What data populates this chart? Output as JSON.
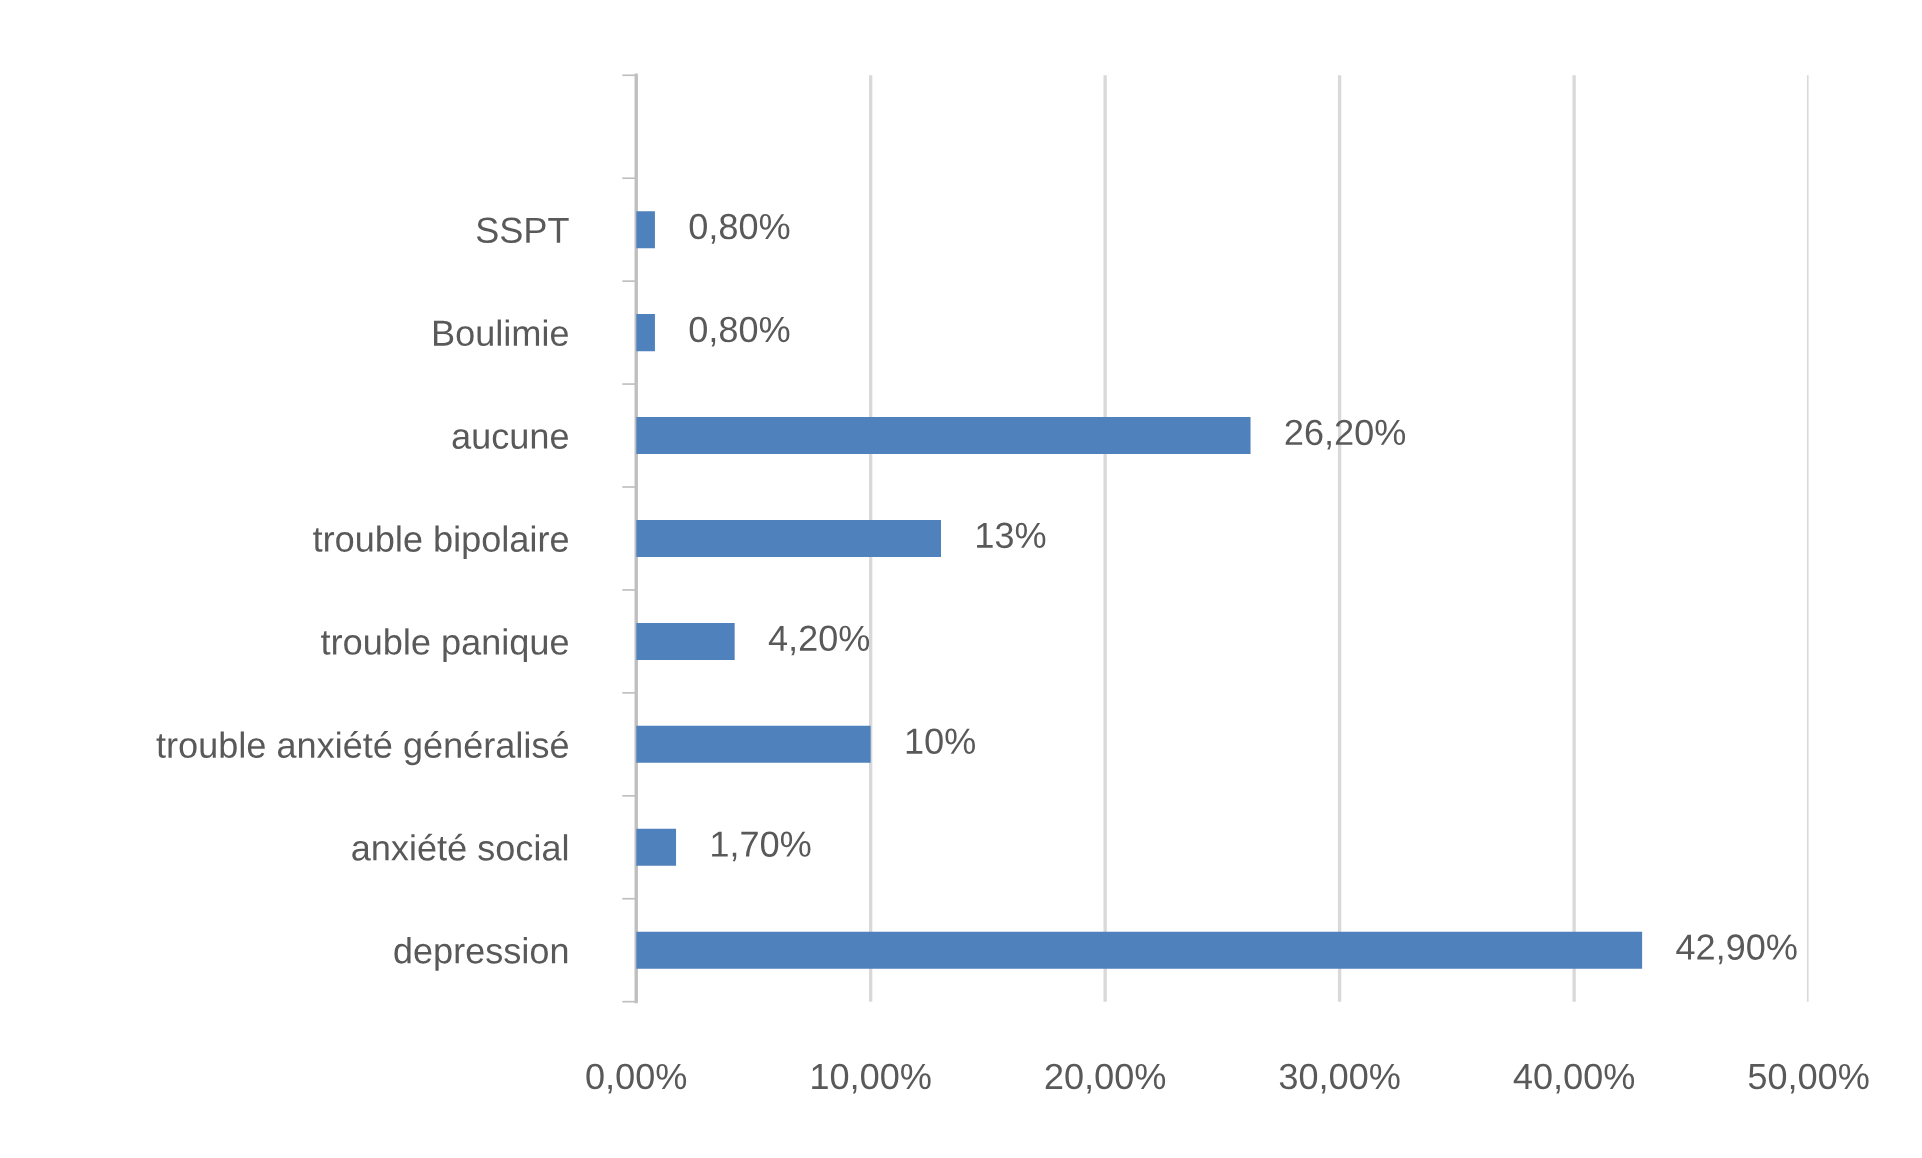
{
  "chart_data": {
    "type": "bar",
    "orientation": "horizontal",
    "categories": [
      null,
      "SSPT",
      "Boulimie",
      "aucune",
      "trouble bipolaire",
      "trouble panique",
      "trouble anxiété généralisé",
      "anxiété social",
      "depression"
    ],
    "values": [
      null,
      0.8,
      0.8,
      26.2,
      13,
      4.2,
      10,
      1.7,
      42.9
    ],
    "value_labels": [
      null,
      "0,80%",
      "0,80%",
      "26,20%",
      "13%",
      "4,20%",
      "10%",
      "1,70%",
      "42,90%"
    ],
    "color": "#4f81bd",
    "xlim": [
      0,
      50
    ],
    "xticks": [
      {
        "value": 0,
        "label": "0,00%"
      },
      {
        "value": 10,
        "label": "10,00%"
      },
      {
        "value": 20,
        "label": "20,00%"
      },
      {
        "value": 30,
        "label": "30,00%"
      },
      {
        "value": 40,
        "label": "40,00%"
      },
      {
        "value": 50,
        "label": "50,00%"
      }
    ],
    "grid": "x",
    "legend": false
  }
}
